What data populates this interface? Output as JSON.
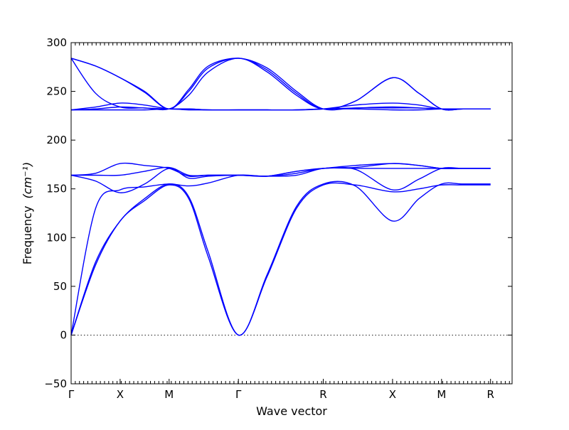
{
  "chart_data": {
    "type": "line",
    "title": "",
    "xlabel": "Wave vector",
    "ylabel": "Frequency",
    "ylabel_unit": "(cm⁻¹)",
    "ylim": [
      -50,
      300
    ],
    "yticks": [
      -50,
      0,
      50,
      100,
      150,
      200,
      250,
      300
    ],
    "xlim": [
      0,
      4.5
    ],
    "xticks": [
      {
        "label": "Γ",
        "x": 0
      },
      {
        "label": "X",
        "x": 0.5
      },
      {
        "label": "M",
        "x": 1.0
      },
      {
        "label": "Γ",
        "x": 1.707
      },
      {
        "label": "R",
        "x": 2.573
      },
      {
        "label": "X",
        "x": 3.28
      },
      {
        "label": "M",
        "x": 3.78
      },
      {
        "label": "R",
        "x": 4.28
      }
    ],
    "zero_line": true,
    "line_color": "#0000ff",
    "series": [
      {
        "x": [
          0,
          0.25,
          0.5,
          0.75,
          1.0,
          1.2,
          1.4,
          1.707,
          2.0,
          2.3,
          2.573,
          2.9,
          3.28,
          3.55,
          3.78,
          4.0,
          4.28
        ],
        "values": [
          0,
          72,
          117,
          138,
          154,
          140,
          80,
          0,
          60,
          130,
          154,
          154,
          147,
          150,
          154,
          154,
          154
        ]
      },
      {
        "x": [
          0,
          0.25,
          0.5,
          0.75,
          1.0,
          1.2,
          1.4,
          1.707,
          2.0,
          2.3,
          2.573,
          2.9,
          3.28,
          3.55,
          3.78,
          4.0,
          4.28
        ],
        "values": [
          0,
          75,
          117,
          140,
          155,
          142,
          85,
          0,
          62,
          132,
          155,
          153,
          117,
          140,
          155,
          155,
          155
        ]
      },
      {
        "x": [
          0,
          0.25,
          0.5,
          0.75,
          1.0,
          1.2,
          1.4,
          1.707,
          2.0,
          2.3,
          2.573,
          2.9,
          3.28,
          3.55,
          3.78,
          4.0,
          4.28
        ],
        "values": [
          0,
          130,
          149,
          152,
          155,
          153,
          156,
          164,
          163,
          168,
          171,
          170,
          149,
          160,
          171,
          171,
          171
        ]
      },
      {
        "x": [
          0,
          0.25,
          0.5,
          0.75,
          1.0,
          1.2,
          1.4,
          1.707,
          2.0,
          2.3,
          2.573,
          2.9,
          3.28,
          3.55,
          3.78,
          4.0,
          4.28
        ],
        "values": [
          164,
          158,
          146,
          155,
          171,
          161,
          163,
          164,
          163,
          166,
          171,
          172,
          176,
          174,
          171,
          171,
          171
        ]
      },
      {
        "x": [
          0,
          0.25,
          0.5,
          0.75,
          1.0,
          1.2,
          1.4,
          1.707,
          2.0,
          2.3,
          2.573,
          2.9,
          3.28,
          3.55,
          3.78,
          4.0,
          4.28
        ],
        "values": [
          164,
          166,
          176,
          174,
          171,
          163,
          164,
          164,
          163,
          168,
          171,
          174,
          176,
          174,
          171,
          171,
          171
        ]
      },
      {
        "x": [
          0,
          0.25,
          0.5,
          0.75,
          1.0,
          1.2,
          1.4,
          1.707,
          2.0,
          2.3,
          2.573,
          2.9,
          3.28,
          3.55,
          3.78,
          4.0,
          4.28
        ],
        "values": [
          164,
          164,
          164,
          168,
          172,
          164,
          164,
          164,
          163,
          164,
          171,
          171,
          171,
          171,
          171,
          171,
          171
        ]
      },
      {
        "x": [
          0,
          0.25,
          0.5,
          0.75,
          1.0,
          1.2,
          1.4,
          1.707,
          2.0,
          2.3,
          2.573,
          2.9,
          3.28,
          3.55,
          3.78,
          4.0,
          4.28
        ],
        "values": [
          231,
          231,
          231,
          231,
          232,
          231,
          231,
          231,
          231,
          231,
          232,
          232,
          231,
          231,
          232,
          232,
          232
        ]
      },
      {
        "x": [
          0,
          0.25,
          0.5,
          0.75,
          1.0,
          1.2,
          1.4,
          1.707,
          2.0,
          2.3,
          2.573,
          2.9,
          3.28,
          3.55,
          3.78,
          4.0,
          4.28
        ],
        "values": [
          231,
          232,
          234,
          233,
          232,
          232,
          231,
          231,
          231,
          231,
          232,
          233,
          234,
          233,
          232,
          232,
          232
        ]
      },
      {
        "x": [
          0,
          0.25,
          0.5,
          0.75,
          1.0,
          1.2,
          1.4,
          1.707,
          2.0,
          2.3,
          2.573,
          2.9,
          3.28,
          3.55,
          3.78,
          4.0,
          4.28
        ],
        "values": [
          231,
          234,
          238,
          236,
          232,
          232,
          231,
          231,
          231,
          231,
          232,
          236,
          238,
          236,
          232,
          232,
          232
        ]
      },
      {
        "x": [
          0,
          0.25,
          0.5,
          0.75,
          1.0,
          1.2,
          1.4,
          1.707,
          2.0,
          2.3,
          2.573,
          2.9,
          3.28,
          3.55,
          3.78,
          4.0,
          4.28
        ],
        "values": [
          284,
          248,
          234,
          233,
          232,
          246,
          270,
          284,
          270,
          246,
          232,
          240,
          264,
          248,
          232,
          232,
          232
        ]
      },
      {
        "x": [
          0,
          0.25,
          0.5,
          0.75,
          1.0,
          1.2,
          1.4,
          1.707,
          2.0,
          2.3,
          2.573,
          2.9,
          3.28,
          3.55,
          3.78,
          4.0,
          4.28
        ],
        "values": [
          284,
          276,
          264,
          250,
          232,
          250,
          274,
          284,
          272,
          248,
          232,
          240,
          264,
          248,
          232,
          232,
          232
        ]
      },
      {
        "x": [
          0,
          0.25,
          0.5,
          0.75,
          1.0,
          1.2,
          1.4,
          1.707,
          2.0,
          2.3,
          2.573,
          2.9,
          3.28,
          3.55,
          3.78,
          4.0,
          4.28
        ],
        "values": [
          284,
          276,
          264,
          249,
          232,
          252,
          276,
          284,
          274,
          250,
          232,
          233,
          233,
          233,
          232,
          232,
          232
        ]
      }
    ]
  }
}
